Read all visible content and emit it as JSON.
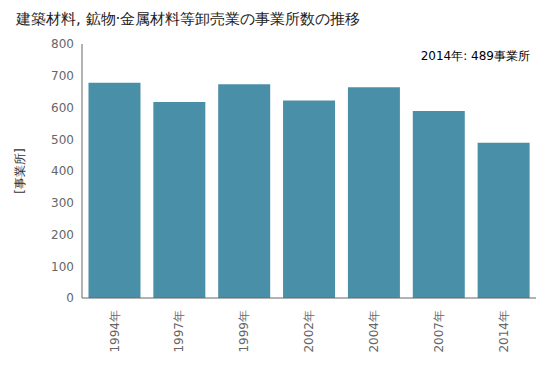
{
  "chart_data": {
    "type": "bar",
    "title": "建築材料, 鉱物·金属材料等卸売業の事業所数の推移",
    "ylabel": "[事業所]",
    "annotation": "2014年: 489事業所",
    "categories": [
      "1994年",
      "1997年",
      "1999年",
      "2002年",
      "2004年",
      "2007年",
      "2014年"
    ],
    "values": [
      678,
      617,
      673,
      622,
      664,
      589,
      489
    ],
    "color": "#4a8fa8",
    "ylim": [
      0,
      800
    ],
    "yticks": [
      0,
      100,
      200,
      300,
      400,
      500,
      600,
      700,
      800
    ],
    "grid": false
  }
}
